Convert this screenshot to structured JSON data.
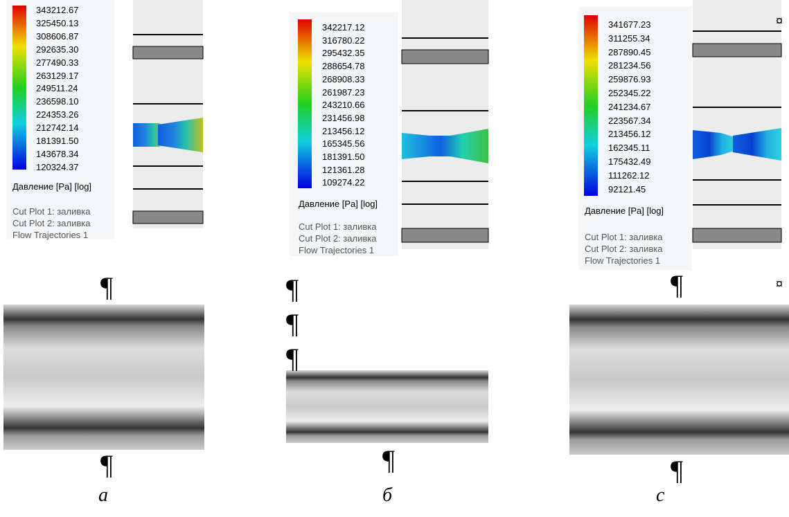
{
  "pilcrow": "¶",
  "end_marker": "¤",
  "panels": [
    {
      "legend_values": [
        "343212.67",
        "325450.13",
        "308606.87",
        "292635.30",
        "277490.33",
        "263129.17",
        "249511.24",
        "236598.10",
        "224353.26",
        "212742.14",
        "181391.50",
        "143678.34",
        "120324.37"
      ],
      "legend_title": "Давление [Pa] [log]",
      "plot_labels": [
        "Cut Plot 1: заливка",
        "Cut Plot 2: заливка",
        "Flow Trajectories 1"
      ],
      "caption": "a"
    },
    {
      "legend_values": [
        "342217.12",
        "316780.22",
        "295432.35",
        "288654.78",
        "268908.33",
        "261987.23",
        "243210.66",
        "231456.98",
        "213456.12",
        "165345.56",
        "181391.50",
        "121361.28",
        "109274.22"
      ],
      "legend_title": "Давление [Pa] [log]",
      "plot_labels": [
        "Cut Plot 1: заливка",
        "Cut Plot 2: заливка",
        "Flow Trajectories 1"
      ],
      "caption": "б"
    },
    {
      "legend_values": [
        "341677.23",
        "311255.34",
        "287890.45",
        "281234.56",
        "259876.93",
        "252345.22",
        "241234.67",
        "223567.34",
        "213456.12",
        "162345.11",
        "175432.49",
        "111262.12",
        "92121.45"
      ],
      "legend_title": "Давление [Pa] [log]",
      "plot_labels": [
        "Cut Plot 1: заливка",
        "Cut Plot 2: заливка",
        "Flow Trajectories 1"
      ],
      "caption": "c"
    }
  ]
}
